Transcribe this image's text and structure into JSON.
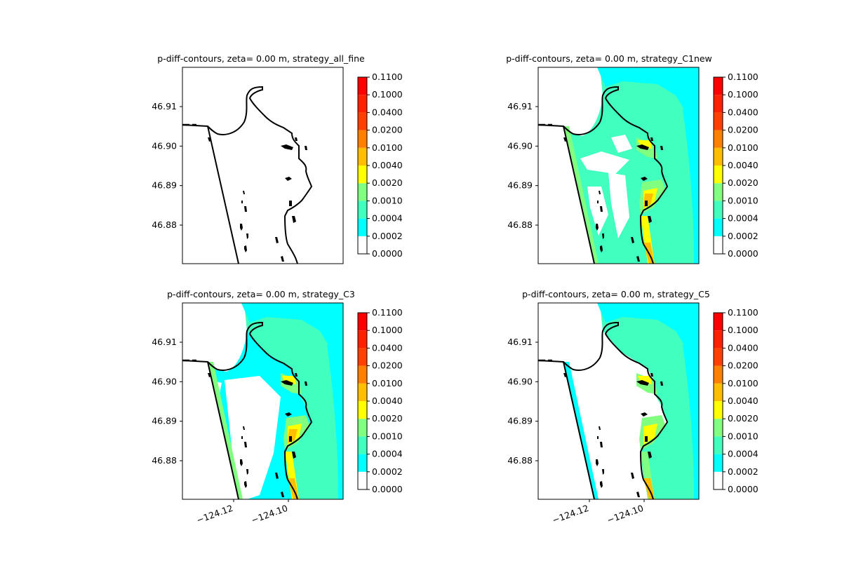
{
  "figure": {
    "panel_titles": [
      "p-diff-contours, zeta= 0.00 m, strategy_all_fine",
      "p-diff-contours, zeta= 0.00 m, strategy_C1new",
      "p-diff-contours, zeta= 0.00 m, strategy_C3",
      "p-diff-contours, zeta= 0.00 m, strategy_C5"
    ]
  },
  "chart_data": [
    {
      "type": "heatmap",
      "title": "p-diff-contours, zeta= 0.00 m, strategy_all_fine",
      "subplot": "top-left",
      "xlabel": "",
      "ylabel": "",
      "xlim": [
        -124.14,
        -124.11
      ],
      "ylim": [
        46.871,
        46.9195
      ],
      "x_ticks": [],
      "y_ticks": [
        46.88,
        46.89,
        46.9,
        46.91
      ],
      "y_tick_labels": [
        "46.88",
        "46.89",
        "46.90",
        "46.91"
      ],
      "colorbar_levels": [
        "0.0000",
        "0.0002",
        "0.0004",
        "0.0010",
        "0.0020",
        "0.0040",
        "0.0100",
        "0.0200",
        "0.0400",
        "0.1000",
        "0.1100"
      ],
      "fill": "none"
    },
    {
      "type": "heatmap",
      "title": "p-diff-contours, zeta= 0.00 m, strategy_C1new",
      "subplot": "top-right",
      "xlabel": "",
      "ylabel": "",
      "y_ticks": [
        46.88,
        46.89,
        46.9,
        46.91
      ],
      "y_tick_labels": [
        "46.88",
        "46.89",
        "46.90",
        "46.91"
      ],
      "colorbar_levels": [
        "0.0000",
        "0.0002",
        "0.0004",
        "0.0010",
        "0.0020",
        "0.0040",
        "0.0100",
        "0.0200",
        "0.0400",
        "0.1000",
        "0.1100"
      ],
      "fill": "dense"
    },
    {
      "type": "heatmap",
      "title": "p-diff-contours, zeta= 0.00 m, strategy_C3",
      "subplot": "bottom-left",
      "xlabel": "",
      "ylabel": "",
      "x_ticks": [
        -124.12,
        -124.1
      ],
      "x_tick_labels": [
        "−124.12",
        "−124.10"
      ],
      "y_ticks": [
        46.88,
        46.89,
        46.9,
        46.91
      ],
      "y_tick_labels": [
        "46.88",
        "46.89",
        "46.90",
        "46.91"
      ],
      "colorbar_levels": [
        "0.0000",
        "0.0002",
        "0.0004",
        "0.0010",
        "0.0020",
        "0.0040",
        "0.0100",
        "0.0200",
        "0.0400",
        "0.1000",
        "0.1100"
      ],
      "fill": "partial"
    },
    {
      "type": "heatmap",
      "title": "p-diff-contours, zeta= 0.00 m, strategy_C5",
      "subplot": "bottom-right",
      "xlabel": "",
      "ylabel": "",
      "x_ticks": [
        -124.12,
        -124.1
      ],
      "x_tick_labels": [
        "−124.12",
        "−124.10"
      ],
      "y_ticks": [
        46.88,
        46.89,
        46.9,
        46.91
      ],
      "y_tick_labels": [
        "46.88",
        "46.89",
        "46.90",
        "46.91"
      ],
      "colorbar_levels": [
        "0.0000",
        "0.0002",
        "0.0004",
        "0.0010",
        "0.0020",
        "0.0040",
        "0.0100",
        "0.0200",
        "0.0400",
        "0.1000",
        "0.1100"
      ],
      "fill": "sparse"
    }
  ],
  "colormap": {
    "colors": [
      "#ffffff",
      "#00ffff",
      "#40ffbf",
      "#80ff80",
      "#ffff00",
      "#ffbf00",
      "#ff8000",
      "#ff4000",
      "#ff2000",
      "#ff0000"
    ]
  }
}
